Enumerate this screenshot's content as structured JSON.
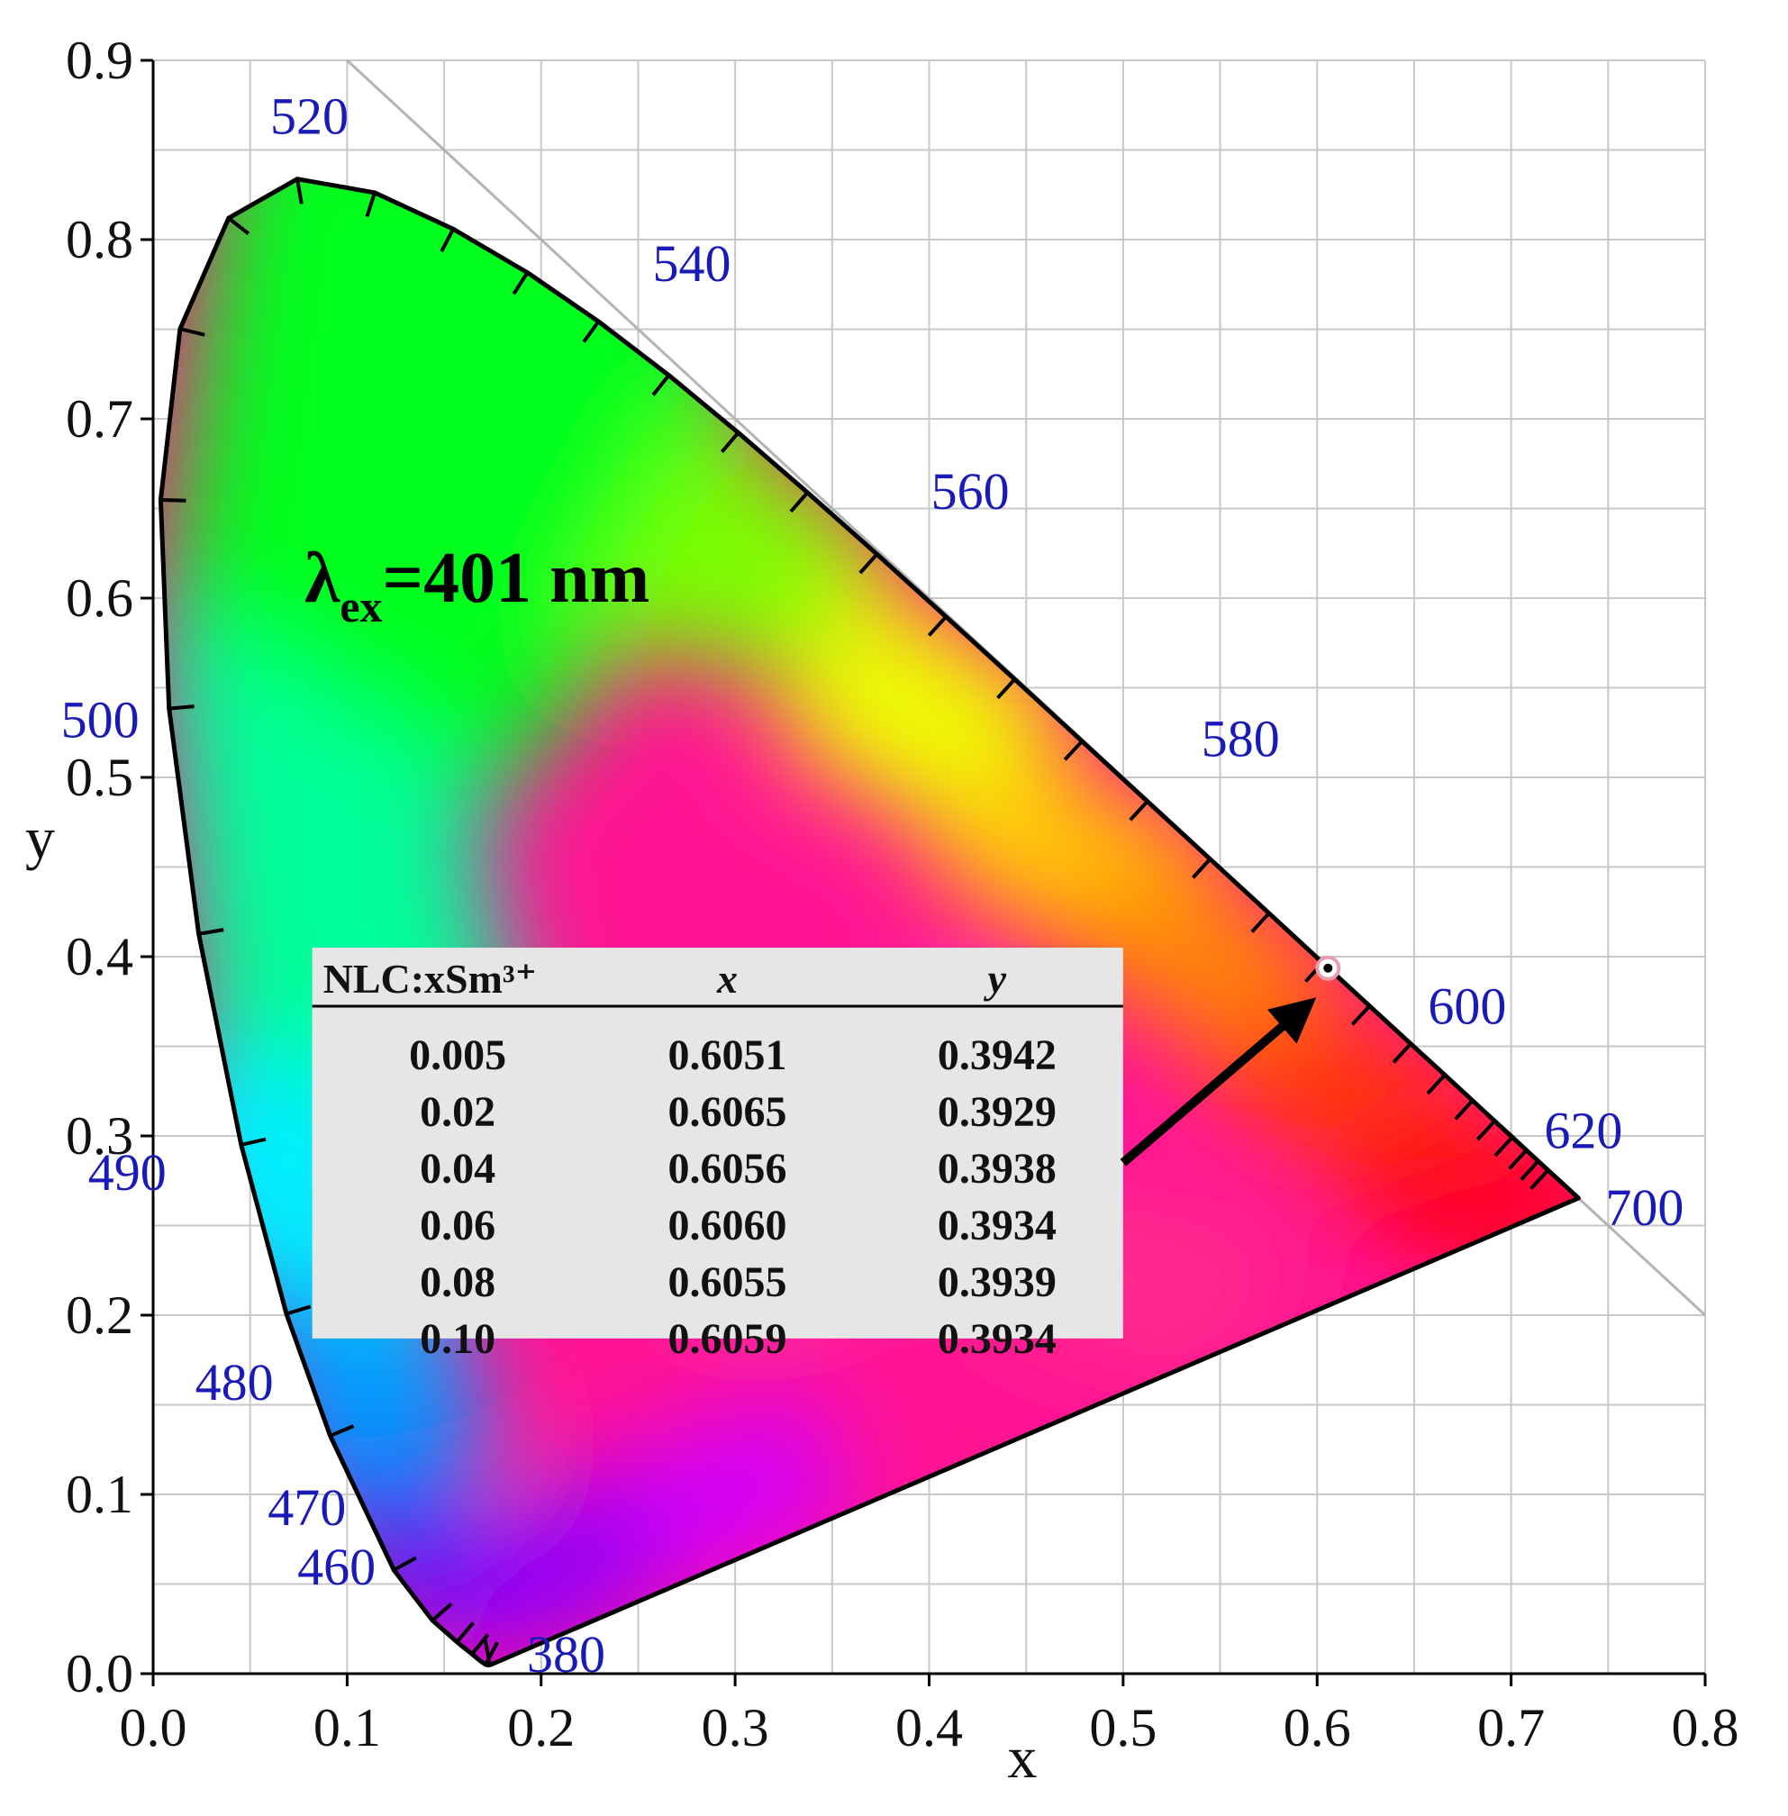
{
  "chart_data": {
    "type": "scatter",
    "title": "",
    "xlabel": "x",
    "ylabel": "y",
    "xlim": [
      0.0,
      0.8
    ],
    "ylim": [
      0.0,
      0.9
    ],
    "grid": true,
    "x_ticks": [
      "0.0",
      "0.1",
      "0.2",
      "0.3",
      "0.4",
      "0.5",
      "0.6",
      "0.7",
      "0.8"
    ],
    "y_ticks": [
      "0.0",
      "0.1",
      "0.2",
      "0.3",
      "0.4",
      "0.5",
      "0.6",
      "0.7",
      "0.8",
      "0.9"
    ],
    "annotation": {
      "lambda": "λ",
      "sub": "ex",
      "rest": "=401 nm"
    },
    "spectral_locus": [
      {
        "nm": 380,
        "x": 0.1741,
        "y": 0.005,
        "label": "380"
      },
      {
        "nm": 460,
        "x": 0.144,
        "y": 0.0297,
        "label": "460"
      },
      {
        "nm": 470,
        "x": 0.1241,
        "y": 0.0578,
        "label": "470"
      },
      {
        "nm": 480,
        "x": 0.0913,
        "y": 0.1327,
        "label": "480"
      },
      {
        "nm": 490,
        "x": 0.0454,
        "y": 0.295,
        "label": "490"
      },
      {
        "nm": 500,
        "x": 0.0082,
        "y": 0.5384,
        "label": "500"
      },
      {
        "nm": 520,
        "x": 0.0743,
        "y": 0.8338,
        "label": "520"
      },
      {
        "nm": 540,
        "x": 0.2296,
        "y": 0.7543,
        "label": "540"
      },
      {
        "nm": 560,
        "x": 0.3731,
        "y": 0.6245,
        "label": "560"
      },
      {
        "nm": 580,
        "x": 0.5125,
        "y": 0.4866,
        "label": "580"
      },
      {
        "nm": 600,
        "x": 0.627,
        "y": 0.3725,
        "label": "600"
      },
      {
        "nm": 620,
        "x": 0.6915,
        "y": 0.3083,
        "label": "620"
      },
      {
        "nm": 700,
        "x": 0.7347,
        "y": 0.2653,
        "label": "700"
      }
    ],
    "series": [
      {
        "values": [
          {
            "x": 0.6056,
            "y": 0.3936
          }
        ]
      }
    ],
    "table": {
      "headers": [
        "NLC:xSm³⁺",
        "x",
        "y"
      ],
      "rows": [
        [
          "0.005",
          "0.6051",
          "0.3942"
        ],
        [
          "0.02",
          "0.6065",
          "0.3929"
        ],
        [
          "0.04",
          "0.6056",
          "0.3938"
        ],
        [
          "0.06",
          "0.6060",
          "0.3934"
        ],
        [
          "0.08",
          "0.6055",
          "0.3939"
        ],
        [
          "0.10",
          "0.6059",
          "0.3934"
        ]
      ]
    },
    "colors": {
      "locus_outline": "#000000",
      "wavelength_label": "#1a1ab8",
      "grid": "#c8c8c8",
      "table_bg": "#e6e6e6",
      "point_marker": "#e8a0b0"
    }
  }
}
